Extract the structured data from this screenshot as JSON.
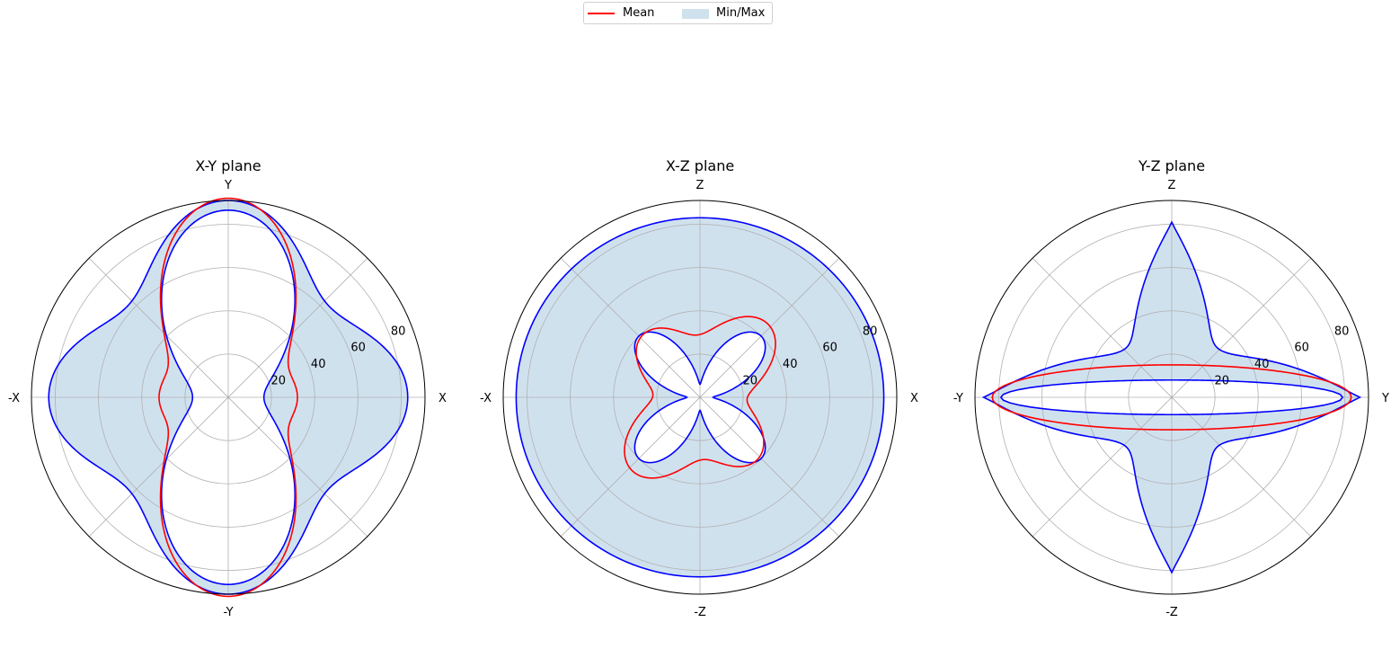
{
  "legend": {
    "mean_label": "Mean",
    "minmax_label": "Min/Max"
  },
  "colors": {
    "mean": "#ff0000",
    "minmax_line": "#0000ff",
    "minmax_fill": "#d0e1ee",
    "grid": "#b0b0b0",
    "spine": "#000000"
  },
  "chart_data": [
    {
      "type": "polar",
      "title": "X-Y plane",
      "direction_labels": {
        "right": "X",
        "top": "Y",
        "left": "-X",
        "bottom": "-Y"
      },
      "rmax": 91,
      "rticks": [
        20,
        40,
        60,
        80
      ],
      "rtick_labels": [
        "20",
        "40",
        "60",
        "80"
      ],
      "grid": true,
      "min": {
        "kind": "fourier",
        "c0": 46,
        "terms": [
          [
            2,
            -35,
            0
          ],
          [
            4,
            5.5,
            0
          ]
        ],
        "p": 1
      },
      "mean": {
        "kind": "fourier",
        "c0": 52,
        "terms": [
          [
            2,
            -30,
            0
          ],
          [
            4,
            10,
            0
          ]
        ],
        "p": 1
      },
      "max": {
        "kind": "fourier",
        "c0": 75,
        "terms": [
          [
            2,
            -4,
            0
          ],
          [
            4,
            12,
            0
          ]
        ],
        "p": 1
      }
    },
    {
      "type": "polar",
      "title": "X-Z plane",
      "direction_labels": {
        "right": "X",
        "top": "Z",
        "left": "-X",
        "bottom": "-Z"
      },
      "rmax": 91,
      "rticks": [
        20,
        40,
        60,
        80
      ],
      "rtick_labels": [
        "20",
        "40",
        "60",
        "80"
      ],
      "grid": true,
      "min": {
        "kind": "xshape",
        "a": 6,
        "b": 34,
        "c": 0.8,
        "p": 1.7
      },
      "mean": {
        "kind": "fourier",
        "c0": 34,
        "terms": [
          [
            4,
            -8.5,
            0
          ],
          [
            2,
            -5,
            45
          ]
        ],
        "p": 1
      },
      "max": {
        "kind": "fourier",
        "c0": 84,
        "terms": [
          [
            2,
            1,
            0
          ]
        ],
        "p": 1
      }
    },
    {
      "type": "polar",
      "title": "Y-Z plane",
      "direction_labels": {
        "right": "Y",
        "top": "Z",
        "left": "-Y",
        "bottom": "-Z"
      },
      "rmax": 91,
      "rticks": [
        20,
        40,
        60,
        80
      ],
      "rtick_labels": [
        "20",
        "40",
        "60",
        "80"
      ],
      "grid": true,
      "min": {
        "kind": "ellipse",
        "a": 79,
        "b": 8
      },
      "mean": {
        "kind": "ellipse",
        "a": 83,
        "b": 15
      },
      "max": {
        "kind": "superellipse",
        "a": 87,
        "b": 81,
        "base": 15,
        "p": 6
      }
    }
  ]
}
